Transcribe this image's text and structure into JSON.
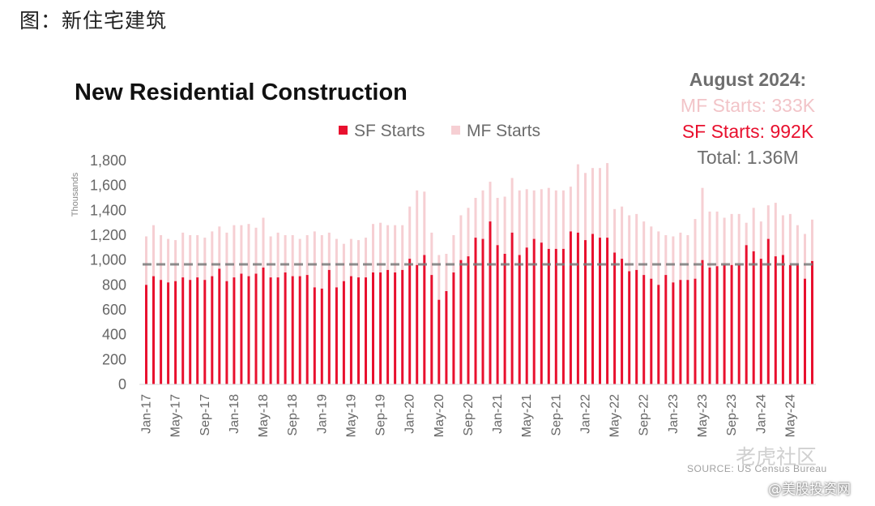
{
  "caption": "图：新住宅建筑",
  "summary": {
    "heading": "August 2024:",
    "mf": "MF Starts: 333K",
    "sf": "SF Starts:  992K",
    "total": "Total:  1.36M"
  },
  "source": "SOURCE: US Census Bureau",
  "watermark": {
    "mark": "老虎社区",
    "handle": "@美股投资网"
  },
  "colors": {
    "sf": "#e8102e",
    "mf": "#f6cfd3",
    "reference_line": "#7a7a7a"
  },
  "chart_data": {
    "type": "bar",
    "stacked": true,
    "title": "New Residential Construction",
    "ylabel": "Thousands",
    "ylim": [
      0,
      1800
    ],
    "yticks": [
      "0",
      "200",
      "400",
      "600",
      "800",
      "1,000",
      "1,200",
      "1,400",
      "1,600",
      "1,800"
    ],
    "legend_position": "top",
    "reference_line": 965,
    "tick_labels": [
      "Jan-17",
      "May-17",
      "Sep-17",
      "Jan-18",
      "May-18",
      "Sep-18",
      "Jan-19",
      "May-19",
      "Sep-19",
      "Jan-20",
      "May-20",
      "Sep-20",
      "Jan-21",
      "May-21",
      "Sep-21",
      "Jan-22",
      "May-22",
      "Sep-22",
      "Jan-23",
      "May-23",
      "Sep-23",
      "Jan-24",
      "May-24"
    ],
    "tick_every": 4,
    "series": [
      {
        "name": "SF Starts",
        "values": [
          800,
          870,
          840,
          820,
          830,
          860,
          840,
          860,
          840,
          870,
          930,
          830,
          860,
          890,
          870,
          890,
          940,
          860,
          860,
          900,
          870,
          870,
          880,
          780,
          770,
          920,
          780,
          830,
          870,
          860,
          860,
          900,
          900,
          920,
          900,
          920,
          1010,
          960,
          1040,
          880,
          680,
          750,
          900,
          1000,
          1030,
          1180,
          1170,
          1310,
          1120,
          1050,
          1220,
          1040,
          1100,
          1170,
          1140,
          1090,
          1090,
          1090,
          1230,
          1220,
          1160,
          1210,
          1180,
          1180,
          1060,
          1010,
          910,
          920,
          880,
          850,
          800,
          880,
          820,
          840,
          840,
          850,
          1000,
          940,
          950,
          960,
          960,
          960,
          1120,
          1070,
          1010,
          1170,
          1030,
          1040,
          960,
          970,
          850,
          992
        ]
      },
      {
        "name": "MF Starts",
        "values": [
          390,
          410,
          360,
          350,
          330,
          360,
          360,
          340,
          340,
          360,
          340,
          390,
          420,
          390,
          420,
          370,
          400,
          330,
          360,
          300,
          330,
          300,
          320,
          450,
          430,
          300,
          390,
          300,
          300,
          300,
          320,
          390,
          400,
          360,
          380,
          360,
          420,
          600,
          510,
          340,
          360,
          300,
          300,
          360,
          390,
          320,
          390,
          320,
          380,
          460,
          440,
          520,
          470,
          390,
          430,
          490,
          470,
          470,
          360,
          550,
          540,
          530,
          560,
          600,
          350,
          420,
          450,
          450,
          430,
          420,
          430,
          320,
          370,
          380,
          360,
          480,
          580,
          450,
          440,
          380,
          410,
          410,
          180,
          350,
          300,
          270,
          430,
          320,
          410,
          310,
          360,
          333
        ]
      }
    ]
  }
}
